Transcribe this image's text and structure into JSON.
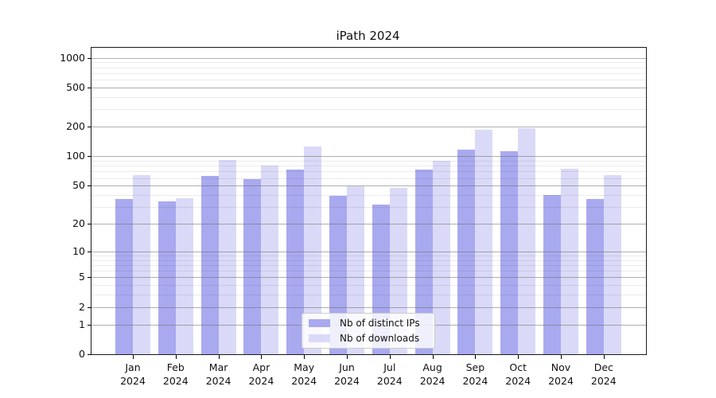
{
  "figure": {
    "title": "iPath 2024"
  },
  "chart_data": {
    "type": "bar",
    "title": "iPath 2024",
    "yscale": "symlog",
    "grid": true,
    "legend_position": "lower center",
    "categories": [
      "Jan",
      "Feb",
      "Mar",
      "Apr",
      "May",
      "Jun",
      "Jul",
      "Aug",
      "Sep",
      "Oct",
      "Nov",
      "Dec"
    ],
    "x_year": "2024",
    "series": [
      {
        "name": "Nb of distinct IPs",
        "color": "#a9a9f0",
        "values": [
          36,
          34,
          63,
          58,
          73,
          39,
          32,
          73,
          116,
          112,
          40,
          36
        ]
      },
      {
        "name": "Nb of downloads",
        "color": "#dadaf8",
        "values": [
          64,
          37,
          92,
          80,
          126,
          49,
          47,
          90,
          185,
          195,
          74,
          64
        ]
      }
    ],
    "y_ticks": [
      0,
      1,
      2,
      5,
      10,
      20,
      50,
      100,
      200,
      500,
      1000
    ],
    "y_minor_gridlines": [
      3,
      4,
      6,
      7,
      8,
      9,
      30,
      40,
      60,
      70,
      80,
      90,
      300,
      400,
      600,
      700,
      800,
      900
    ],
    "ylim": [
      0,
      1260
    ]
  }
}
